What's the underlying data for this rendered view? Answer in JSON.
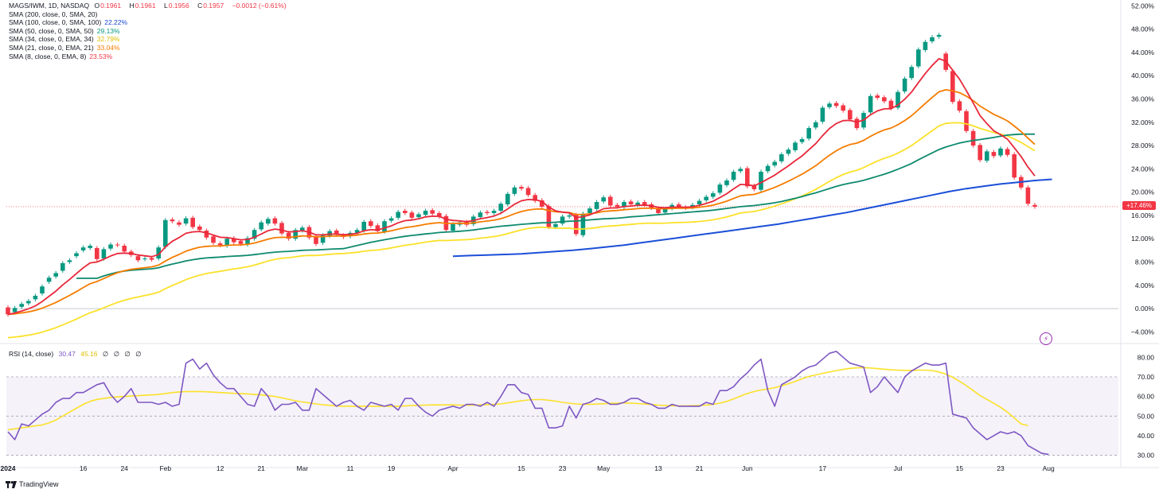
{
  "legend": {
    "symbol": "MAGS/IWM, 1D, NASDAQ",
    "ohlc": [
      {
        "k": "O",
        "v": "0.1961"
      },
      {
        "k": "H",
        "v": "0.1961"
      },
      {
        "k": "L",
        "v": "0.1956"
      },
      {
        "k": "C",
        "v": "0.1957"
      }
    ],
    "change": "−0.0012 (−0.61%)",
    "indicators": [
      {
        "label": "SMA (200, close, 0, SMA, 20)",
        "value": "",
        "color": "#2962ff"
      },
      {
        "label": "SMA (100, close, 0, SMA, 100)",
        "value": "22.22%",
        "color": "#1848cc"
      },
      {
        "label": "SMA (50, close, 0, SMA, 50)",
        "value": "29.13%",
        "color": "#089981"
      },
      {
        "label": "SMA (34, close, 0, EMA, 34)",
        "value": "32.79%",
        "color": "#f6d70b"
      },
      {
        "label": "SMA (21, close, 0, EMA, 21)",
        "value": "33.04%",
        "color": "#f57c00"
      },
      {
        "label": "SMA (8, close, 0, EMA, 8)",
        "value": "23.53%",
        "color": "#f23645"
      }
    ]
  },
  "rsi_legend": {
    "label": "RSI (14, close)",
    "v1": "30.47",
    "v2": "45.16",
    "zeros": [
      "∅",
      "∅",
      "∅",
      "∅"
    ]
  },
  "last_badge": "+17.46%",
  "flash_glyph": "⚡",
  "brand": "TradingView",
  "colors": {
    "up": "#089981",
    "down": "#f23645",
    "ema8": "#e8283a",
    "ema21": "#f57c00",
    "ema34": "#fbe129",
    "sma50": "#0e8a6e",
    "sma100": "#1b4fd8",
    "rsi": "#7e57c2",
    "rsi_ma": "#fbe129"
  },
  "chart_data": [
    {
      "type": "candlestick",
      "yaxis": "percent",
      "y_ticks": [
        "52.00%",
        "48.00%",
        "44.00%",
        "40.00%",
        "36.00%",
        "32.00%",
        "28.00%",
        "24.00%",
        "20.00%",
        "16.00%",
        "12.00%",
        "8.00%",
        "4.00%",
        "0.00%",
        "−4.00%"
      ],
      "y_tick_values": [
        52,
        48,
        44,
        40,
        36,
        32,
        28,
        24,
        20,
        16,
        12,
        8,
        4,
        0,
        -4
      ],
      "ylim": [
        -6,
        53
      ],
      "x_ticks": [
        {
          "label": "2024",
          "day": 0
        },
        {
          "label": "16",
          "day": 11
        },
        {
          "label": "24",
          "day": 17
        },
        {
          "label": "Feb",
          "day": 23
        },
        {
          "label": "12",
          "day": 31
        },
        {
          "label": "21",
          "day": 37
        },
        {
          "label": "Mar",
          "day": 43
        },
        {
          "label": "11",
          "day": 50
        },
        {
          "label": "19",
          "day": 56
        },
        {
          "label": "Apr",
          "day": 65
        },
        {
          "label": "15",
          "day": 75
        },
        {
          "label": "23",
          "day": 81
        },
        {
          "label": "May",
          "day": 87
        },
        {
          "label": "13",
          "day": 95
        },
        {
          "label": "21",
          "day": 101
        },
        {
          "label": "Jun",
          "day": 108
        },
        {
          "label": "17",
          "day": 119
        },
        {
          "label": "Jul",
          "day": 130
        },
        {
          "label": "15",
          "day": 139
        },
        {
          "label": "23",
          "day": 145
        },
        {
          "label": "Aug",
          "day": 152
        }
      ],
      "close": [
        -1.0,
        0.1,
        0.8,
        1.3,
        2.2,
        3.8,
        5.3,
        6.1,
        7.8,
        8.3,
        9.5,
        10.5,
        10.8,
        8.5,
        10.2,
        11.0,
        10.9,
        9.8,
        9.2,
        8.3,
        8.6,
        8.4,
        10.5,
        15.2,
        15.0,
        14.4,
        15.5,
        14.0,
        13.5,
        12.2,
        11.3,
        10.9,
        12.0,
        11.4,
        11.1,
        12.1,
        13.5,
        14.8,
        15.4,
        14.6,
        12.9,
        12.0,
        13.5,
        13.9,
        12.2,
        11.1,
        12.6,
        13.3,
        12.8,
        12.3,
        13.0,
        13.5,
        14.9,
        14.2,
        13.3,
        15.0,
        15.5,
        16.6,
        16.4,
        15.6,
        16.2,
        16.8,
        16.3,
        15.8,
        13.5,
        14.5,
        14.8,
        14.4,
        15.8,
        16.5,
        16.4,
        16.8,
        18.0,
        19.7,
        20.8,
        20.6,
        19.5,
        18.5,
        17.5,
        14.0,
        14.5,
        15.8,
        16.0,
        12.8,
        16.3,
        17.2,
        18.3,
        19.1,
        17.7,
        17.5,
        18.3,
        17.9,
        18.2,
        17.8,
        17.3,
        16.4,
        17.1,
        17.8,
        17.5,
        17.3,
        17.8,
        18.5,
        19.2,
        19.8,
        21.3,
        22.0,
        23.5,
        24.0,
        21.0,
        20.5,
        23.5,
        24.5,
        25.2,
        26.5,
        27.3,
        28.5,
        29.1,
        31.0,
        32.0,
        34.5,
        35.2,
        34.8,
        34.0,
        32.5,
        31.0,
        33.6,
        36.5,
        36.2,
        35.6,
        34.4,
        37.2,
        39.5,
        41.5,
        44.5,
        45.8,
        46.6,
        47.0,
        41.0,
        35.5,
        34.0,
        30.5,
        28.0,
        25.5,
        27.0,
        26.2,
        27.5,
        26.4,
        22.5,
        20.8,
        18.0,
        17.5
      ],
      "open": [
        0.2,
        -0.6,
        0.3,
        0.9,
        1.6,
        2.6,
        4.6,
        5.5,
        6.5,
        8.0,
        9.0,
        10.0,
        10.4,
        10.4,
        8.6,
        10.3,
        11.0,
        10.8,
        9.8,
        9.0,
        8.5,
        8.7,
        8.6,
        10.6,
        15.3,
        14.8,
        14.6,
        15.6,
        14.1,
        13.4,
        12.4,
        11.2,
        10.8,
        12.1,
        11.6,
        11.0,
        12.0,
        13.6,
        14.6,
        15.5,
        14.7,
        13.0,
        12.0,
        13.4,
        14.0,
        12.3,
        11.3,
        12.5,
        13.4,
        12.6,
        12.4,
        13.0,
        13.4,
        15.0,
        14.3,
        13.2,
        15.1,
        15.6,
        16.8,
        16.5,
        15.7,
        16.1,
        16.9,
        16.4,
        15.9,
        13.4,
        14.4,
        14.9,
        14.5,
        15.7,
        16.6,
        16.4,
        16.8,
        17.9,
        19.7,
        20.9,
        20.7,
        19.5,
        18.6,
        17.6,
        14.0,
        14.6,
        15.8,
        16.1,
        12.6,
        16.4,
        17.1,
        18.4,
        19.2,
        17.8,
        17.4,
        18.4,
        17.8,
        18.3,
        17.9,
        17.2,
        16.5,
        17.2,
        17.9,
        17.4,
        17.4,
        17.9,
        18.6,
        19.2,
        19.9,
        21.2,
        22.1,
        23.6,
        24.1,
        21.1,
        20.4,
        23.6,
        24.6,
        25.3,
        26.6,
        27.2,
        28.6,
        29.2,
        31.1,
        32.1,
        34.6,
        35.3,
        34.9,
        34.1,
        32.6,
        31.1,
        33.7,
        36.6,
        36.3,
        35.7,
        34.5,
        37.3,
        39.6,
        41.6,
        44.4,
        45.9,
        46.7,
        43.8,
        40.8,
        35.6,
        33.9,
        30.5,
        28.1,
        25.4,
        26.9,
        26.3,
        27.4,
        26.5,
        22.6,
        20.8,
        17.8
      ],
      "sma100_start_day": 65,
      "sma100": [
        9.0,
        9.1,
        9.2,
        9.3,
        9.4,
        9.6,
        9.8,
        10.0,
        10.3,
        10.6,
        10.9,
        11.3,
        11.7,
        12.1,
        12.5,
        12.9,
        13.3,
        13.7,
        14.1,
        14.5,
        15.0,
        15.5,
        16.0,
        16.5,
        17.1,
        17.7,
        18.3,
        18.9,
        19.5,
        20.1,
        20.6,
        21.0,
        21.4,
        21.7,
        22.0,
        22.2
      ]
    },
    {
      "type": "line",
      "name": "RSI",
      "y_ticks": [
        "80.00",
        "70.00",
        "60.00",
        "50.00",
        "40.00",
        "30.00"
      ],
      "y_tick_values": [
        80,
        70,
        60,
        50,
        40,
        30
      ],
      "ylim": [
        27,
        87
      ],
      "rsi": [
        42,
        38,
        46,
        45,
        48,
        51,
        53,
        57,
        59,
        59,
        62,
        62,
        64,
        66,
        67,
        61,
        57,
        60,
        64,
        57,
        57,
        57,
        56,
        57,
        55,
        56,
        77,
        79,
        74,
        77,
        71,
        67,
        64,
        64,
        60,
        56,
        55,
        64,
        60,
        53,
        56,
        56,
        57,
        53,
        53,
        64,
        61,
        58,
        55,
        57,
        58,
        55,
        53,
        57,
        56,
        55,
        56,
        53,
        59,
        59,
        55,
        52,
        50,
        53,
        54,
        55,
        54,
        56,
        56,
        55,
        57,
        55,
        60,
        66,
        66,
        62,
        61,
        54,
        54,
        44,
        44,
        45,
        55,
        49,
        56,
        57,
        59,
        58,
        56,
        56,
        57,
        59,
        59,
        57,
        56,
        54,
        54,
        56,
        55,
        55,
        55,
        55,
        57,
        56,
        63,
        63,
        65,
        69,
        72,
        76,
        79,
        63,
        55,
        66,
        68,
        70,
        73,
        75,
        76,
        79,
        82,
        83,
        80,
        77,
        76,
        75,
        62,
        65,
        70,
        66,
        62,
        70,
        73,
        75,
        77,
        76,
        76,
        77,
        51,
        50,
        49,
        44,
        41,
        38,
        40,
        42,
        41,
        42,
        40,
        35,
        33,
        31,
        30.5
      ],
      "rsi_ma": [
        43,
        43.5,
        44,
        44.5,
        45,
        45.5,
        46.5,
        48,
        50,
        52,
        54,
        56,
        57.5,
        58.5,
        59,
        59.5,
        59.8,
        60,
        60.2,
        60.4,
        60.6,
        60.8,
        61,
        61.5,
        62,
        62.3,
        62.5,
        62.5,
        62.5,
        62.4,
        62.2,
        62,
        61.8,
        61.6,
        61.5,
        61.3,
        61,
        60.8,
        60.4,
        60,
        59.3,
        58.6,
        57.8,
        57.2,
        56.7,
        56.2,
        55.8,
        55.5,
        55.2,
        55,
        55,
        55,
        55,
        55,
        55,
        55,
        55,
        55,
        55.2,
        55.4,
        55.5,
        55.6,
        55.7,
        55.7,
        55.7,
        55.7,
        55.6,
        55.6,
        55.6,
        55.7,
        55.9,
        56,
        56.2,
        56.7,
        57.3,
        57.8,
        58.2,
        58.4,
        58.4,
        58.1,
        57.6,
        57,
        56.6,
        56.2,
        56,
        56,
        56.1,
        56.3,
        56.5,
        56.6,
        56.7,
        56.6,
        56.4,
        56.2,
        55.9,
        55.6,
        55.4,
        55.3,
        55.2,
        55.2,
        55.3,
        55.4,
        55.6,
        56,
        56.6,
        57.5,
        58.8,
        60.2,
        61.5,
        62.5,
        63.3,
        63.8,
        64.5,
        65.4,
        66.5,
        67.7,
        69,
        70.2,
        71,
        71.8,
        72.5,
        73.2,
        73.8,
        74.3,
        74.6,
        74.7,
        74.5,
        74.2,
        73.9,
        73.6,
        73.4,
        73.3,
        73.3,
        73.4,
        73.4,
        73.2,
        72.5,
        71.4,
        69.8,
        67.8,
        65.5,
        63,
        60.5,
        58.5,
        56.5,
        54.5,
        52,
        49,
        46,
        45.2
      ]
    }
  ]
}
